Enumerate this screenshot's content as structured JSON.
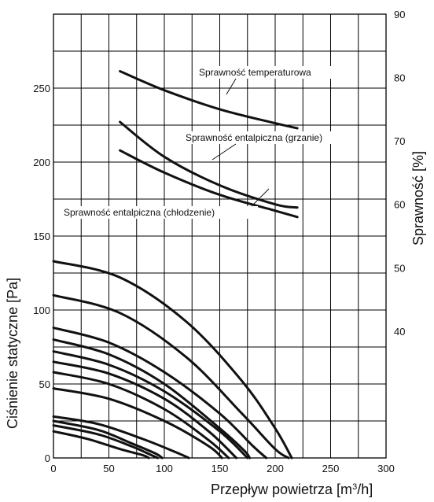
{
  "chart_data": {
    "type": "line",
    "title": "",
    "xlabel": "Przepływ powietrza [m³/h]",
    "xlabel_main": "Przepływ powietrza [m",
    "xlabel_sup": "3",
    "xlabel_end": "/h]",
    "ylabel_left": "Ciśnienie statyczne [Pa]",
    "ylabel_right": "Sprawność [%]",
    "xlim": [
      0,
      300
    ],
    "ylim_left": [
      0,
      300
    ],
    "ylim_right": [
      20,
      90
    ],
    "grid": true,
    "x_ticks": [
      "0",
      "50",
      "100",
      "150",
      "200",
      "250",
      "300"
    ],
    "y_left_ticks": [
      "0",
      "50",
      "100",
      "150",
      "200",
      "250"
    ],
    "y_right_ticks": [
      "40",
      "50",
      "60",
      "70",
      "80",
      "90"
    ],
    "pressure_curves": [
      {
        "x": [
          0,
          60,
          120,
          170,
          200,
          215
        ],
        "y": [
          133,
          122,
          92,
          52,
          20,
          0
        ]
      },
      {
        "x": [
          0,
          60,
          120,
          170,
          200,
          212
        ],
        "y": [
          110,
          98,
          68,
          30,
          6,
          0
        ]
      },
      {
        "x": [
          0,
          50,
          100,
          150,
          180,
          192
        ],
        "y": [
          88,
          78,
          58,
          30,
          8,
          0
        ]
      },
      {
        "x": [
          0,
          50,
          100,
          150,
          172,
          177
        ],
        "y": [
          80,
          70,
          50,
          20,
          5,
          0
        ]
      },
      {
        "x": [
          0,
          50,
          100,
          150,
          175
        ],
        "y": [
          72,
          63,
          45,
          18,
          0
        ]
      },
      {
        "x": [
          0,
          50,
          100,
          140,
          165
        ],
        "y": [
          65,
          57,
          40,
          18,
          0
        ]
      },
      {
        "x": [
          0,
          50,
          100,
          140,
          158
        ],
        "y": [
          58,
          50,
          33,
          12,
          0
        ]
      },
      {
        "x": [
          0,
          50,
          100,
          140,
          152
        ],
        "y": [
          47,
          40,
          25,
          8,
          0
        ]
      },
      {
        "x": [
          0,
          40,
          80,
          110,
          122
        ],
        "y": [
          28,
          23,
          13,
          4,
          0
        ]
      },
      {
        "x": [
          0,
          40,
          70,
          92,
          98
        ],
        "y": [
          25,
          19,
          10,
          3,
          0
        ]
      },
      {
        "x": [
          0,
          40,
          70,
          88,
          94
        ],
        "y": [
          22,
          16,
          8,
          2,
          0
        ]
      },
      {
        "x": [
          0,
          30,
          60,
          80,
          86
        ],
        "y": [
          18,
          13,
          6,
          2,
          0
        ]
      }
    ],
    "efficiency_curves": [
      {
        "name": "Sprawność temperaturowa",
        "x": [
          60,
          100,
          150,
          200,
          220
        ],
        "y": [
          81,
          78,
          75,
          72.8,
          72
        ]
      },
      {
        "name": "Sprawność entalpiczna (grzanie)",
        "x": [
          60,
          100,
          150,
          200,
          220
        ],
        "y": [
          73,
          67.5,
          63,
          60,
          59.5
        ]
      },
      {
        "name": "Sprawność entalpiczna (chłodzenie)",
        "x": [
          60,
          100,
          150,
          200,
          220
        ],
        "y": [
          68.5,
          65,
          61.5,
          59,
          58
        ]
      }
    ]
  }
}
